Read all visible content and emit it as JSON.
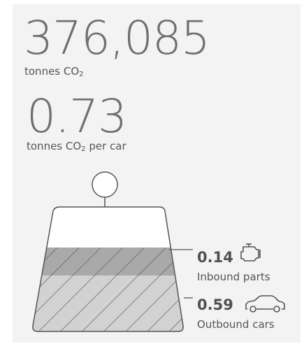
{
  "total": {
    "value": "376,085",
    "unit_prefix": "tonnes CO",
    "unit_sub": "2"
  },
  "per_car": {
    "value": "0.73",
    "unit_prefix": "tonnes CO",
    "unit_sub": "2",
    "unit_suffix": " per car"
  },
  "segments": [
    {
      "value": "0.14",
      "label": "Inbound parts",
      "icon": "engine-icon"
    },
    {
      "value": "0.59",
      "label": "Outbound cars",
      "icon": "car-icon"
    }
  ],
  "colors": {
    "background": "#f3f3f3",
    "stroke": "#555555",
    "inbound_fill": "#a9a9a9",
    "outbound_fill": "#d2d2d2"
  }
}
